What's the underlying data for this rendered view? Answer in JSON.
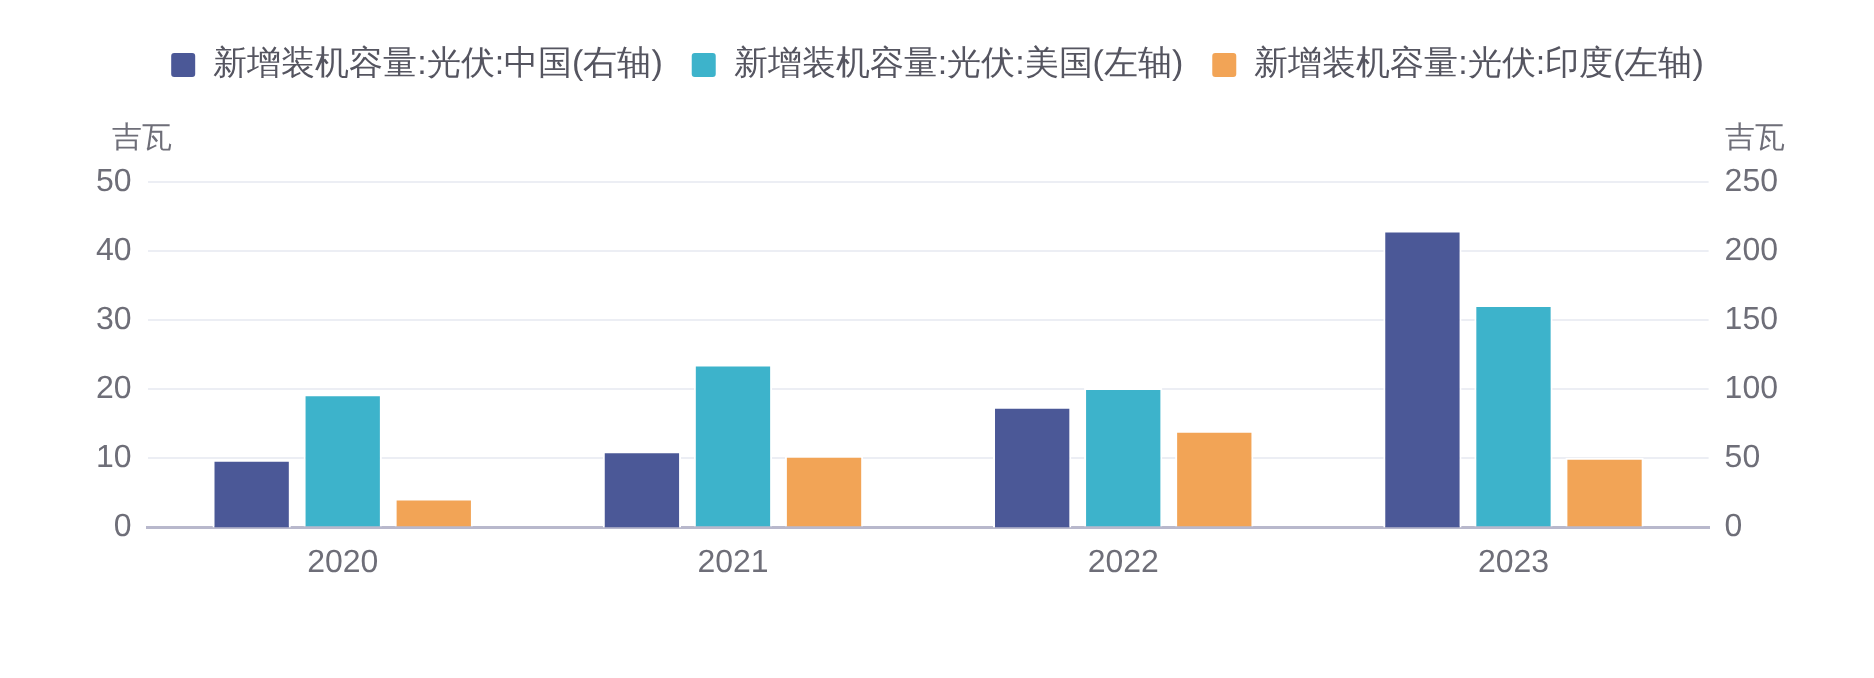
{
  "chart_data": {
    "type": "bar",
    "categories": [
      "2020",
      "2021",
      "2022",
      "2023"
    ],
    "series": [
      {
        "name": "新增装机容量:光伏:中国(右轴)",
        "color": "#4b5897",
        "axis": "y2",
        "values": [
          49,
          55.3,
          87.4,
          215
        ]
      },
      {
        "name": "新增装机容量:光伏:美国(左轴)",
        "color": "#3db3cb",
        "values": [
          19.3,
          23.6,
          20.2,
          32.2
        ]
      },
      {
        "name": "新增装机容量:光伏:印度(左轴)",
        "color": "#f2a456",
        "values": [
          4.2,
          10.4,
          14.0,
          10.1
        ]
      }
    ],
    "ylabel": "吉瓦",
    "y2label": "吉瓦",
    "ylim": [
      0,
      50
    ],
    "yticks": [
      0,
      10,
      20,
      30,
      40,
      50
    ],
    "y2lim": [
      0,
      250
    ],
    "y2ticks": [
      0,
      50,
      100,
      150,
      200,
      250
    ],
    "grid": "y",
    "legend": "top"
  }
}
